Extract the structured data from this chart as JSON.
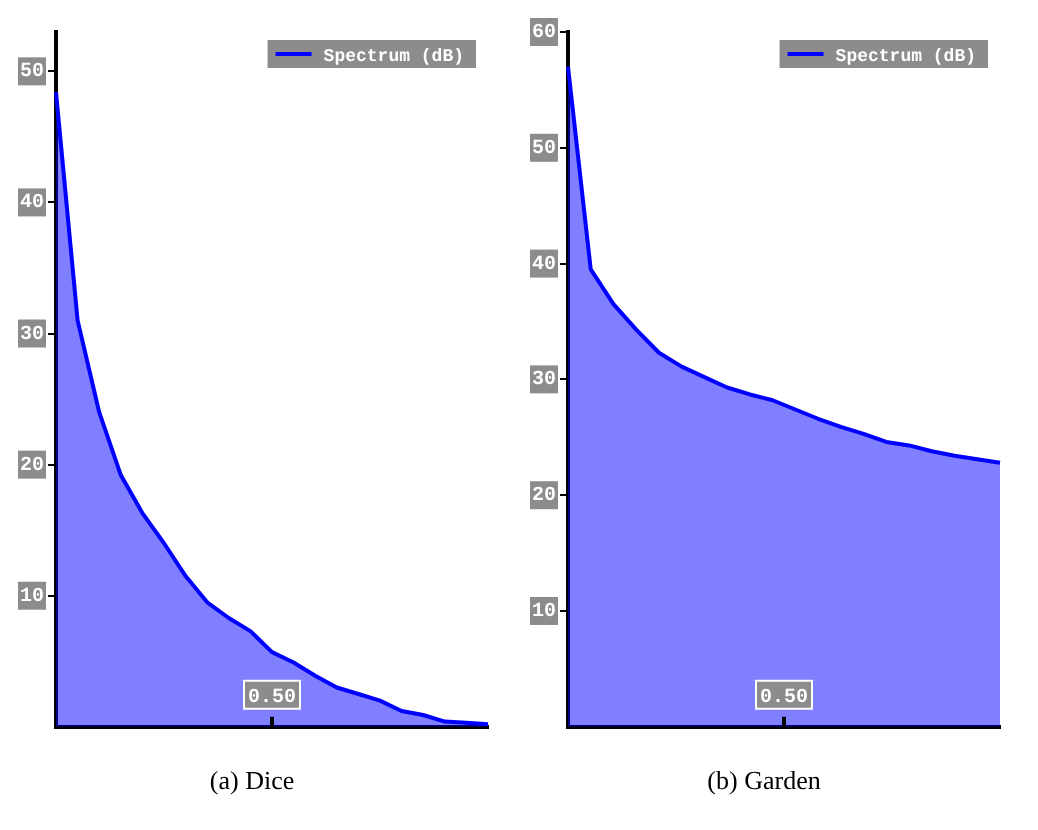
{
  "chart_data": [
    {
      "type": "area",
      "title": "(a) Dice",
      "legend": "top right",
      "annotations": [
        "0.50"
      ],
      "ylim": [
        0,
        53
      ],
      "yticks": [
        10,
        20,
        30,
        40,
        50
      ],
      "categories": [
        null,
        null,
        null,
        null,
        null,
        null,
        null,
        null,
        null,
        null,
        null,
        null,
        null,
        null,
        null,
        null,
        null,
        null,
        null,
        null,
        null
      ],
      "series": [
        {
          "name": "Spectrum (dB)",
          "color": "#0000ff",
          "values": [
            48.4,
            31,
            24,
            19.2,
            16.3,
            14,
            11.5,
            9.5,
            8.3,
            7.3,
            5.7,
            4.9,
            3.9,
            3.0,
            2.5,
            2.0,
            1.2,
            0.9,
            0.4,
            0.3,
            0.2
          ]
        }
      ]
    },
    {
      "type": "area",
      "title": "(b) Garden",
      "legend": "top right",
      "annotations": [
        "0.50"
      ],
      "ylim": [
        0,
        60
      ],
      "yticks": [
        10,
        20,
        30,
        40,
        50,
        60
      ],
      "categories": [
        null,
        null,
        null,
        null,
        null,
        null,
        null,
        null,
        null,
        null,
        null,
        null,
        null,
        null,
        null,
        null,
        null,
        null,
        null,
        null
      ],
      "series": [
        {
          "name": "Spectrum (dB)",
          "color": "#0000ff",
          "values": [
            57,
            39.5,
            36.5,
            34.3,
            32.3,
            31.1,
            30.2,
            29.3,
            28.7,
            28.2,
            27.4,
            26.6,
            25.9,
            25.3,
            24.6,
            24.3,
            23.8,
            23.4,
            23.1,
            22.8
          ]
        }
      ]
    }
  ]
}
